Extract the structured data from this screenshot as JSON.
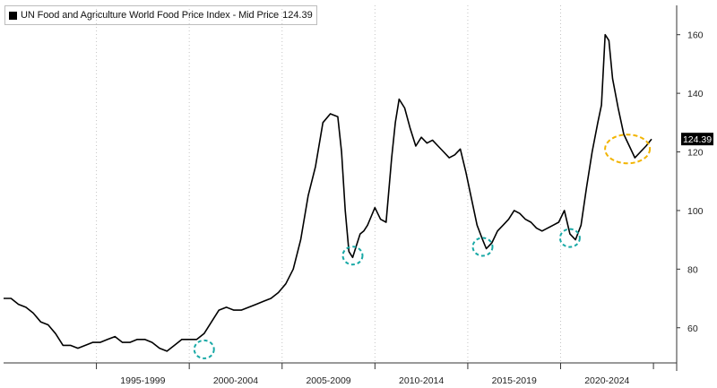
{
  "chart_data": {
    "type": "line",
    "title": "",
    "legend": {
      "label": "UN Food and Agriculture World Food Price Index - Mid Price",
      "value": "124.39",
      "placement": "top-left"
    },
    "last_value_label": "124.39",
    "x_tick_labels": [
      "1995-1999",
      "2000-2004",
      "2005-2009",
      "2010-2014",
      "2015-2019",
      "2020-2024"
    ],
    "y_ticks": [
      60,
      80,
      100,
      120,
      140,
      160
    ],
    "ylim": [
      48,
      170
    ],
    "xlim": [
      1990.0,
      2026.25
    ],
    "grid": "vertical dotted",
    "colors": {
      "line": "#000000",
      "trough_circles": "#19a9a6",
      "recent_circle": "#f2b400"
    },
    "series": [
      {
        "x": [
          1990.0,
          1990.4,
          1990.8,
          1991.2,
          1991.6,
          1992.0,
          1992.4,
          1992.8,
          1993.2,
          1993.6,
          1994.0,
          1994.4,
          1994.8,
          1995.2,
          1995.6,
          1996.0,
          1996.4,
          1996.8,
          1997.2,
          1997.6,
          1998.0,
          1998.4,
          1998.8,
          1999.2,
          1999.6,
          2000.0,
          2000.4,
          2000.8,
          2001.2,
          2001.6,
          2002.0,
          2002.4,
          2002.8,
          2003.2,
          2003.6,
          2004.0,
          2004.4,
          2004.8,
          2005.2,
          2005.6,
          2006.0,
          2006.4,
          2006.8,
          2007.2,
          2007.6,
          2008.0,
          2008.2,
          2008.4,
          2008.6,
          2008.8,
          2009.0,
          2009.2,
          2009.4,
          2009.6,
          2009.8,
          2010.0,
          2010.3,
          2010.6,
          2010.9,
          2011.1,
          2011.3,
          2011.6,
          2011.9,
          2012.2,
          2012.5,
          2012.8,
          2013.1,
          2013.4,
          2013.7,
          2014.0,
          2014.3,
          2014.6,
          2014.9,
          2015.2,
          2015.5,
          2015.8,
          2016.0,
          2016.3,
          2016.6,
          2016.9,
          2017.2,
          2017.5,
          2017.8,
          2018.1,
          2018.4,
          2018.7,
          2019.0,
          2019.3,
          2019.6,
          2019.9,
          2020.2,
          2020.5,
          2020.8,
          2021.1,
          2021.4,
          2021.7,
          2022.0,
          2022.2,
          2022.4,
          2022.6,
          2022.8,
          2023.1,
          2023.4,
          2023.7,
          2024.0,
          2024.3,
          2024.6,
          2024.9
        ],
        "y": [
          70,
          70,
          68,
          67,
          65,
          62,
          61,
          58,
          54,
          54,
          53,
          54,
          55,
          55,
          56,
          57,
          55,
          55,
          56,
          56,
          55,
          53,
          52,
          54,
          56,
          56,
          56,
          58,
          62,
          66,
          67,
          66,
          66,
          67,
          68,
          69,
          70,
          72,
          75,
          80,
          90,
          105,
          115,
          130,
          133,
          132,
          120,
          100,
          86,
          84,
          88,
          92,
          93,
          95,
          98,
          101,
          97,
          96,
          118,
          130,
          138,
          135,
          128,
          122,
          125,
          123,
          124,
          122,
          120,
          118,
          119,
          121,
          113,
          104,
          95,
          90,
          87,
          89,
          93,
          95,
          97,
          100,
          99,
          97,
          96,
          94,
          93,
          94,
          95,
          96,
          100,
          92,
          90,
          95,
          108,
          120,
          130,
          136,
          160,
          158,
          145,
          135,
          126,
          122,
          118,
          120,
          122,
          124.39
        ]
      }
    ]
  }
}
